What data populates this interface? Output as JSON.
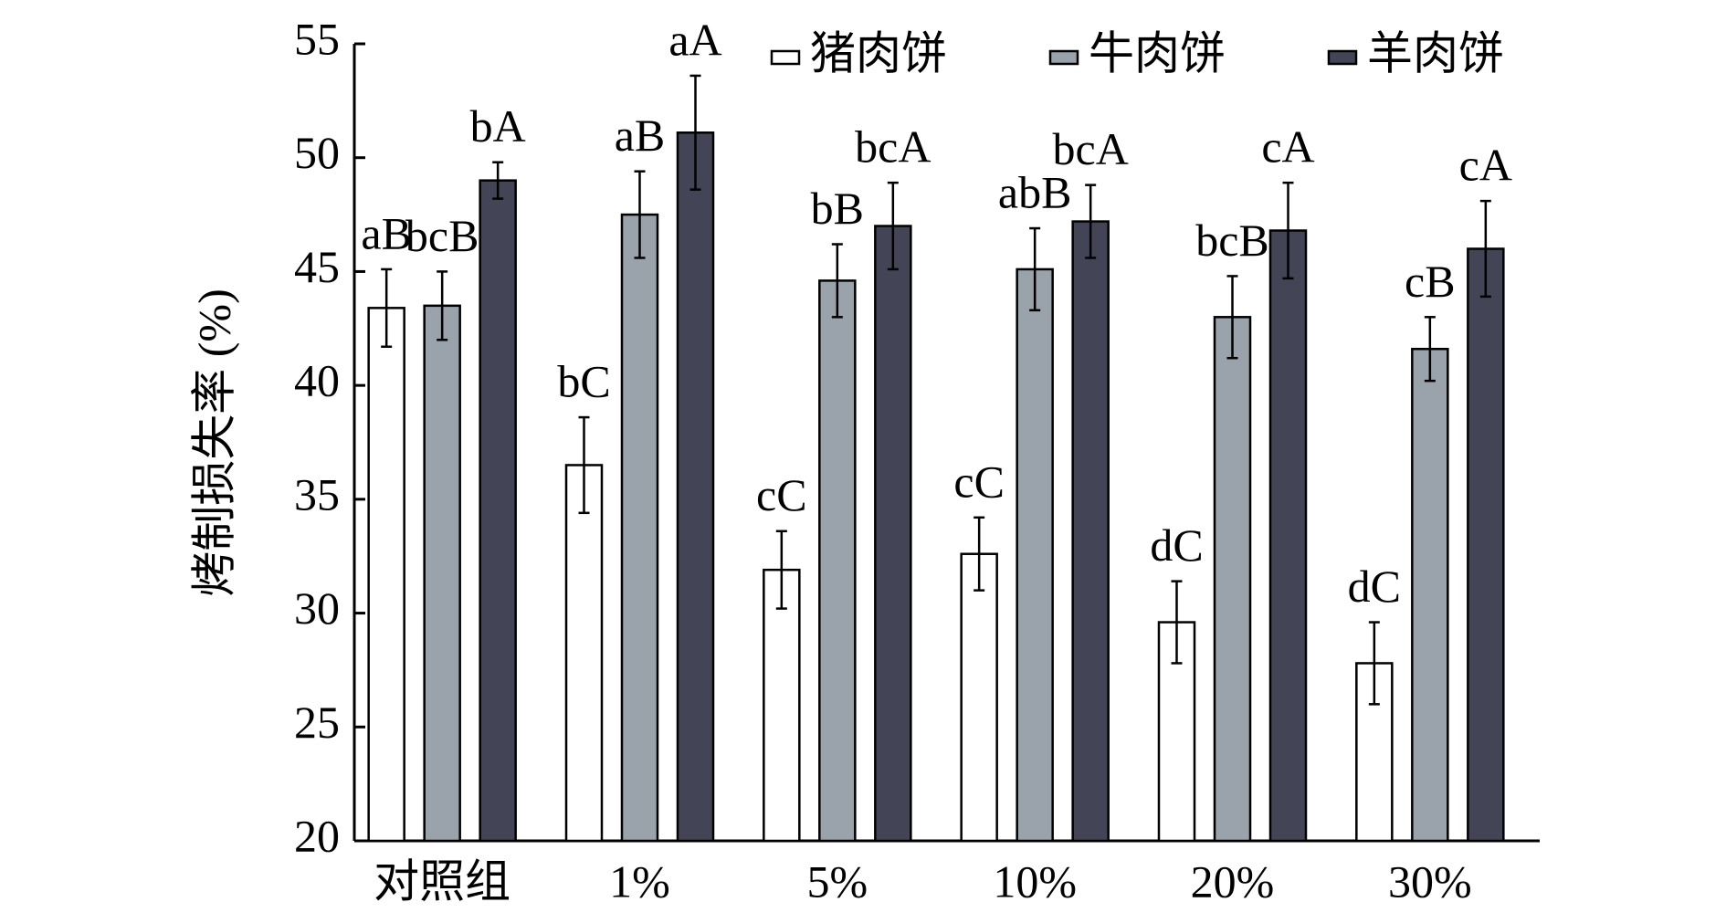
{
  "chart_data": {
    "type": "bar",
    "y_label": "烤制损失率 (%)",
    "categories": [
      "对照组",
      "1%",
      "5%",
      "10%",
      "20%",
      "30%"
    ],
    "series": [
      {
        "name": "猪肉饼",
        "color": "#ffffff",
        "values": [
          43.4,
          36.5,
          31.9,
          32.6,
          29.6,
          27.8
        ],
        "errors": [
          1.7,
          2.1,
          1.7,
          1.6,
          1.8,
          1.8
        ],
        "value_labels": [
          "aB",
          "bC",
          "cC",
          "cC",
          "dC",
          "dC"
        ]
      },
      {
        "name": "牛肉饼",
        "color": "#9aa2ab",
        "values": [
          43.5,
          47.5,
          44.6,
          45.1,
          43.0,
          41.6
        ],
        "errors": [
          1.5,
          1.9,
          1.6,
          1.8,
          1.8,
          1.4
        ],
        "value_labels": [
          "bcB",
          "aB",
          "bB",
          "abB",
          "bcB",
          "cB"
        ]
      },
      {
        "name": "羊肉饼",
        "color": "#434557",
        "values": [
          49.0,
          51.1,
          47.0,
          47.2,
          46.8,
          46.0
        ],
        "errors": [
          0.8,
          2.5,
          1.9,
          1.6,
          2.1,
          2.1
        ],
        "value_labels": [
          "bA",
          "aA",
          "bcA",
          "bcA",
          "cA",
          "cA"
        ]
      }
    ],
    "ylim": [
      20,
      55
    ],
    "yticks": [
      20,
      25,
      30,
      35,
      40,
      45,
      50,
      55
    ],
    "legend": "top-right"
  }
}
